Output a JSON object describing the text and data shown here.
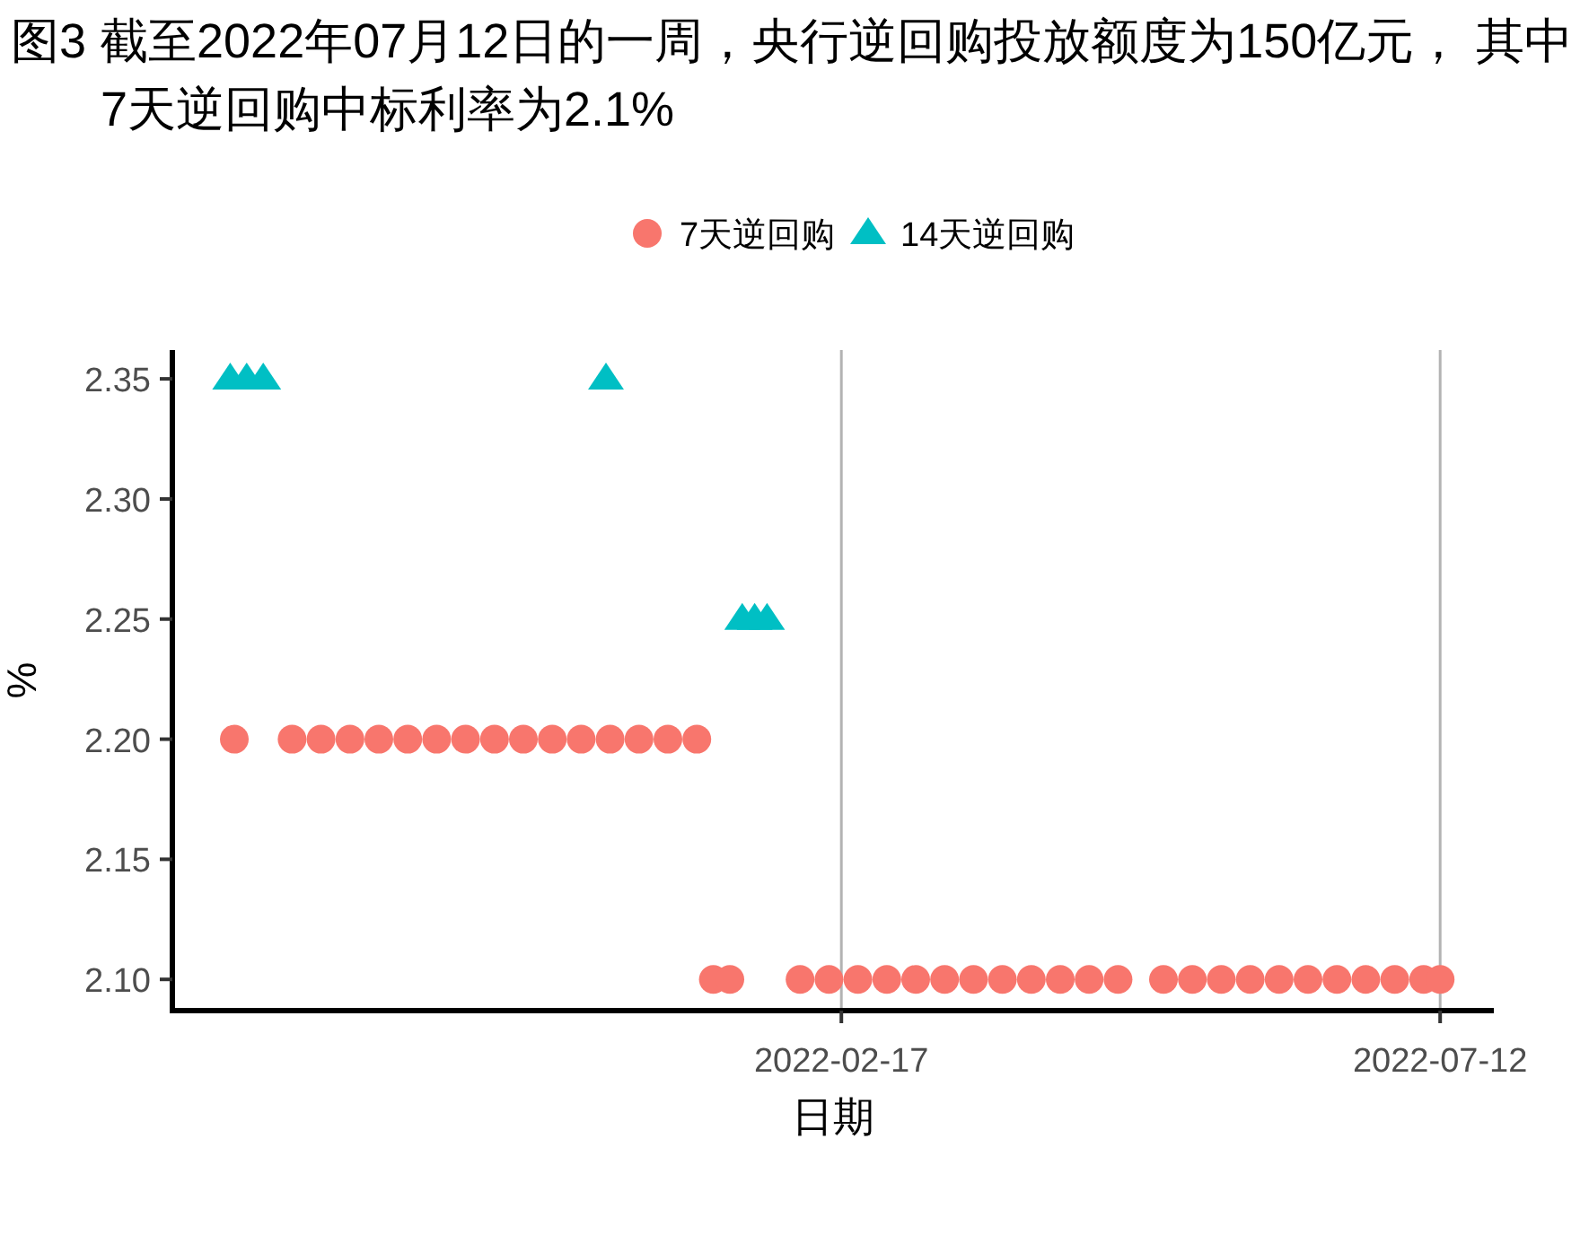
{
  "chart_data": {
    "type": "scatter",
    "title": "图3  截至2022年07月12日的一周，央行逆回购投放额度为150亿元， 其中7天逆回购中标利率为2.1%",
    "xlabel": "日期",
    "ylabel": "%",
    "legend": "top",
    "grid": "x",
    "xlim": [
      "2021-09-08",
      "2022-07-25"
    ],
    "xticks": [
      "2022-02-17",
      "2022-07-12"
    ],
    "ylim": [
      2.087,
      2.362
    ],
    "yticks": [
      {
        "value": 2.1,
        "label": "2.10"
      },
      {
        "value": 2.15,
        "label": "2.15"
      },
      {
        "value": 2.2,
        "label": "2.20"
      },
      {
        "value": 2.25,
        "label": "2.25"
      },
      {
        "value": 2.3,
        "label": "2.30"
      },
      {
        "value": 2.35,
        "label": "2.35"
      }
    ],
    "series": [
      {
        "name": "7天逆回购",
        "color": "#f8766d",
        "marker": "circle",
        "x": [
          "2021-09-23",
          "2021-10-07",
          "2021-10-14",
          "2021-10-21",
          "2021-10-28",
          "2021-11-04",
          "2021-11-11",
          "2021-11-18",
          "2021-11-25",
          "2021-12-02",
          "2021-12-09",
          "2021-12-16",
          "2021-12-23",
          "2021-12-30",
          "2022-01-06",
          "2022-01-13",
          "2022-01-17",
          "2022-01-21",
          "2022-02-07",
          "2022-02-14",
          "2022-02-21",
          "2022-02-28",
          "2022-03-07",
          "2022-03-14",
          "2022-03-21",
          "2022-03-28",
          "2022-04-04",
          "2022-04-11",
          "2022-04-18",
          "2022-04-25",
          "2022-05-06",
          "2022-05-13",
          "2022-05-20",
          "2022-05-27",
          "2022-06-03",
          "2022-06-10",
          "2022-06-17",
          "2022-06-24",
          "2022-07-01",
          "2022-07-08",
          "2022-07-12"
        ],
        "values": [
          2.2,
          2.2,
          2.2,
          2.2,
          2.2,
          2.2,
          2.2,
          2.2,
          2.2,
          2.2,
          2.2,
          2.2,
          2.2,
          2.2,
          2.2,
          2.2,
          2.1,
          2.1,
          2.1,
          2.1,
          2.1,
          2.1,
          2.1,
          2.1,
          2.1,
          2.1,
          2.1,
          2.1,
          2.1,
          2.1,
          2.1,
          2.1,
          2.1,
          2.1,
          2.1,
          2.1,
          2.1,
          2.1,
          2.1,
          2.1,
          2.1
        ]
      },
      {
        "name": "14天逆回购",
        "color": "#00bfc4",
        "marker": "triangle",
        "x": [
          "2021-09-22",
          "2021-09-26",
          "2021-09-30",
          "2021-12-22",
          "2022-01-24",
          "2022-01-27",
          "2022-01-30"
        ],
        "values": [
          2.35,
          2.35,
          2.35,
          2.35,
          2.25,
          2.25,
          2.25
        ]
      }
    ]
  }
}
